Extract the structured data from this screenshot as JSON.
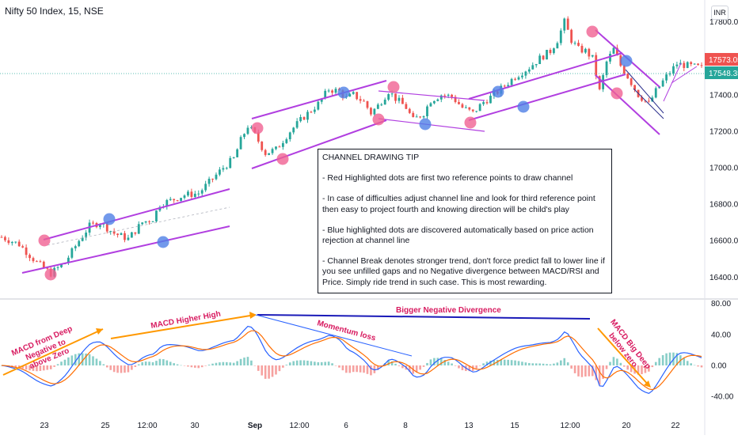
{
  "header": {
    "title": "Nifty 50 Index, 15, NSE",
    "currency": "INR"
  },
  "price_badges": {
    "current": "17573.05",
    "close": "17548.35",
    "current_color": "#ef5350",
    "close_color": "#26a69a"
  },
  "tip": {
    "heading": "CHANNEL DRAWING TIP",
    "bullets": [
      "- Red Highlighted dots are first two reference points to draw channel",
      "- In case of difficulties adjust channel line and look for third reference point then easy to project fourth and knowing direction will be child's play",
      "- Blue highlighted dots are discovered automatically based on price action rejection at channel line",
      "- Channel Break denotes stronger trend, don't force predict fall to lower line if you see unfilled gaps and no Negative divergence between MACD/RSI and Price. Simply ride trend in such case. This is most rewarding."
    ]
  },
  "annotations": {
    "macd_deep": [
      "MACD from Deep",
      "Negative to",
      "above Zero"
    ],
    "macd_higher_high": "MACD Higher High",
    "momentum_loss": "Momentum loss",
    "bigger_divergence": "Bigger Negative Divergence",
    "macd_big_dip": [
      "MACD Big Deep",
      "below zero"
    ]
  },
  "colors": {
    "up": "#26a69a",
    "down": "#ef5350",
    "channel": "#b13fe0",
    "red_dot": "#f06292",
    "blue_dot": "#4f7fe6",
    "macd": "#2962ff",
    "signal": "#ff6d00",
    "annotation_pink": "#d81b60",
    "divergence_line": "#1a1ab8"
  },
  "chart_data": {
    "type": "candlestick",
    "price_axis": {
      "ticks": [
        "17800.00",
        "17600.00",
        "17400.00",
        "17200.00",
        "17000.00",
        "16800.00",
        "16600.00",
        "16400.00"
      ],
      "ylim": [
        16280,
        17920
      ]
    },
    "indicator_axis": {
      "ticks": [
        "80.00",
        "40.00",
        "0.00",
        "-40.00"
      ],
      "ylim": [
        -80,
        80
      ]
    },
    "time_axis": [
      "23",
      "25",
      "12:00",
      "30",
      "Sep",
      "12:00",
      "6",
      "8",
      "13",
      "15",
      "12:00",
      "20",
      "22"
    ],
    "price_path": [
      [
        0,
        16620
      ],
      [
        5,
        16580
      ],
      [
        10,
        16480
      ],
      [
        14,
        16420
      ],
      [
        18,
        16480
      ],
      [
        22,
        16600
      ],
      [
        25,
        16680
      ],
      [
        28,
        16700
      ],
      [
        32,
        16640
      ],
      [
        36,
        16610
      ],
      [
        40,
        16700
      ],
      [
        43,
        16720
      ],
      [
        45,
        16800
      ],
      [
        48,
        16820
      ],
      [
        52,
        16850
      ],
      [
        56,
        16860
      ],
      [
        60,
        16940
      ],
      [
        63,
        17000
      ],
      [
        66,
        17050
      ],
      [
        68,
        17150
      ],
      [
        70,
        17230
      ],
      [
        72,
        17180
      ],
      [
        75,
        17080
      ],
      [
        78,
        17100
      ],
      [
        82,
        17200
      ],
      [
        86,
        17280
      ],
      [
        90,
        17350
      ],
      [
        93,
        17430
      ],
      [
        96,
        17420
      ],
      [
        98,
        17380
      ],
      [
        100,
        17400
      ],
      [
        103,
        17360
      ],
      [
        105,
        17300
      ],
      [
        107,
        17340
      ],
      [
        110,
        17420
      ],
      [
        112,
        17380
      ],
      [
        115,
        17330
      ],
      [
        117,
        17260
      ],
      [
        120,
        17300
      ],
      [
        122,
        17370
      ],
      [
        125,
        17400
      ],
      [
        128,
        17390
      ],
      [
        131,
        17330
      ],
      [
        134,
        17300
      ],
      [
        137,
        17360
      ],
      [
        140,
        17400
      ],
      [
        143,
        17450
      ],
      [
        146,
        17500
      ],
      [
        150,
        17550
      ],
      [
        153,
        17600
      ],
      [
        156,
        17640
      ],
      [
        158,
        17700
      ],
      [
        160,
        17800
      ],
      [
        162,
        17700
      ],
      [
        164,
        17650
      ],
      [
        166,
        17640
      ],
      [
        168,
        17600
      ],
      [
        170,
        17420
      ],
      [
        172,
        17580
      ],
      [
        174,
        17650
      ],
      [
        176,
        17560
      ],
      [
        178,
        17500
      ],
      [
        181,
        17400
      ],
      [
        184,
        17350
      ],
      [
        186,
        17420
      ],
      [
        189,
        17500
      ],
      [
        192,
        17570
      ],
      [
        195,
        17560
      ],
      [
        199,
        17548
      ]
    ]
  }
}
